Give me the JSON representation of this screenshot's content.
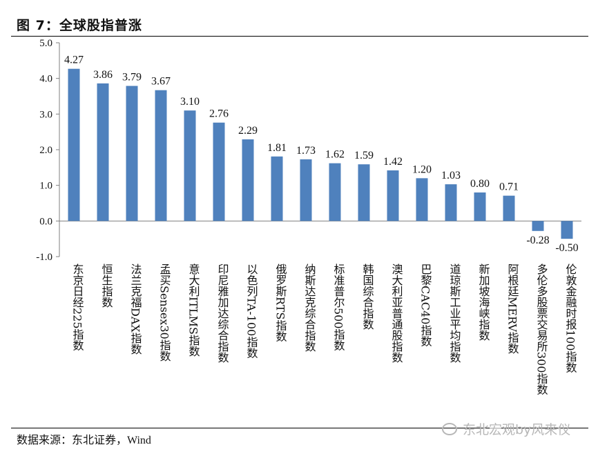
{
  "header": {
    "title": "图 7：全球股指普涨"
  },
  "footer": {
    "source": "数据来源：东北证券，Wind",
    "watermark": "东北宏观by风来仪"
  },
  "colors": {
    "bar": "#4f81bd",
    "axis": "#7f7f7f"
  },
  "chart_data": {
    "type": "bar",
    "title": "",
    "xlabel": "",
    "ylabel": "",
    "ylim": [
      -1.0,
      5.0
    ],
    "yticks": [
      -1.0,
      0.0,
      1.0,
      2.0,
      3.0,
      4.0,
      5.0
    ],
    "ytick_labels": [
      "-1.0",
      "0.0",
      "1.0",
      "2.0",
      "3.0",
      "4.0",
      "5.0"
    ],
    "grid": false,
    "categories": [
      "东京日经225指数",
      "恒生指数",
      "法兰克福DAX指数",
      "孟买Sensex30指数",
      "意大利ITLMS指数",
      "印尼雅加达综合指数",
      "以色列TA-100指数",
      "俄罗斯RTS指数",
      "纳斯达克综合指数",
      "标准普尔500指数",
      "韩国综合指数",
      "澳大利亚普通股指数",
      "巴黎CAC40指数",
      "道琼斯工业平均指数",
      "新加坡海峡指数",
      "阿根廷MERV指数",
      "多伦多股票交易所300指数",
      "伦敦金融时报100指数"
    ],
    "values": [
      4.27,
      3.86,
      3.79,
      3.67,
      3.1,
      2.76,
      2.29,
      1.81,
      1.73,
      1.62,
      1.59,
      1.42,
      1.2,
      1.03,
      0.8,
      0.71,
      -0.28,
      -0.5
    ],
    "value_labels": [
      "4.27",
      "3.86",
      "3.79",
      "3.67",
      "3.10",
      "2.76",
      "2.29",
      "1.81",
      "1.73",
      "1.62",
      "1.59",
      "1.42",
      "1.20",
      "1.03",
      "0.80",
      "0.71",
      "-0.28",
      "-0.50"
    ]
  }
}
